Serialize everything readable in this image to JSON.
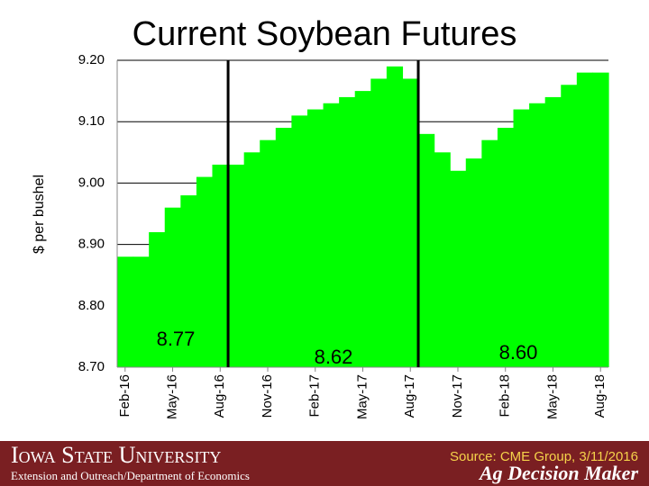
{
  "chart_data": {
    "type": "bar",
    "title": "Current Soybean Futures",
    "y_label": "$ per bushel",
    "categories": [
      "Feb-16",
      null,
      null,
      "May-16",
      null,
      null,
      "Aug-16",
      null,
      null,
      "Nov-16",
      null,
      null,
      "Feb-17",
      null,
      null,
      "May-17",
      null,
      null,
      "Aug-17",
      null,
      null,
      "Nov-17",
      null,
      null,
      "Feb-18",
      null,
      null,
      "May-18",
      null,
      null,
      "Aug-18"
    ],
    "values": [
      8.88,
      8.88,
      8.92,
      8.96,
      8.98,
      9.01,
      9.03,
      9.03,
      9.05,
      9.07,
      9.09,
      9.11,
      9.12,
      9.13,
      9.14,
      9.15,
      9.17,
      9.19,
      9.17,
      9.08,
      9.05,
      9.02,
      9.04,
      9.07,
      9.09,
      9.12,
      9.13,
      9.14,
      9.16,
      9.18,
      9.18
    ],
    "color": "#00ff00",
    "ylim": [
      8.7,
      9.2
    ],
    "yticks": [
      {
        "value": 8.7,
        "label": "8.70"
      },
      {
        "value": 8.8,
        "label": "8.80"
      },
      {
        "value": 8.9,
        "label": "8.90"
      },
      {
        "value": 9.0,
        "label": "9.00"
      },
      {
        "value": 9.1,
        "label": "9.10"
      },
      {
        "value": 9.2,
        "label": "9.20"
      }
    ],
    "grid": true,
    "annotations": [
      "8.77",
      "8.62",
      "8.60"
    ]
  },
  "footer": {
    "university": "Iowa State University",
    "department": "Extension and Outreach/Department of Economics",
    "source": "Source: CME Group, 3/11/2016",
    "brand": "Ag Decision Maker"
  }
}
